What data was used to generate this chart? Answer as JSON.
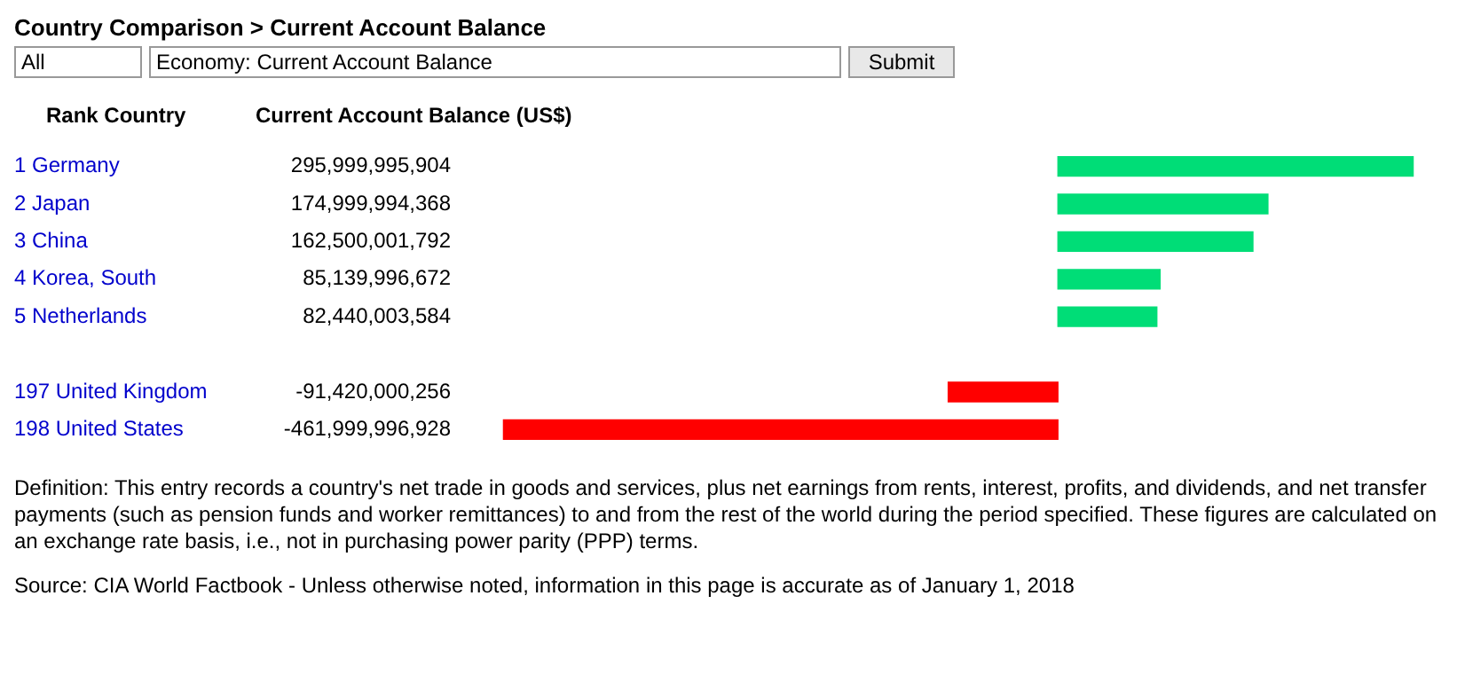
{
  "chart_data": {
    "type": "bar",
    "orientation": "horizontal",
    "title": "Country Comparison > Current Account Balance",
    "ylabel": "Rank Country",
    "xlabel": "Current Account Balance (US$)",
    "categories": [
      "1 Germany",
      "2 Japan",
      "3 China",
      "4 Korea, South",
      "5 Netherlands",
      null,
      "197 United Kingdom",
      "198 United States"
    ],
    "values": [
      295999995904,
      174999994368,
      162500001792,
      85139996672,
      82440003584,
      null,
      -91420000256,
      -461999996928
    ],
    "value_labels": [
      "295,999,995,904",
      "174,999,994,368",
      "162,500,001,792",
      "85,139,996,672",
      "82,440,003,584",
      null,
      "-91,420,000,256",
      "-461,999,996,928"
    ],
    "colors": [
      "#00dd77",
      "#00dd77",
      "#00dd77",
      "#00dd77",
      "#00dd77",
      null,
      "#ff0000",
      "#ff0000"
    ],
    "tick_labels": "y",
    "grid": false,
    "legend": false,
    "annotations": [
      "All",
      "Economy: Current Account Balance",
      "Submit",
      "Definition: This entry records a country's net trade in goods and services, plus net earnings from rents, interest, profits, and dividends, and net transfer payments (such as pension funds and worker remittances) to and from the rest of the world during the period specified. These figures are calculated on an exchange rate basis, i.e., not in purchasing power parity (PPP) terms.",
      "Source: CIA World Factbook - Unless otherwise noted, information in this page is accurate as of January 1, 2018"
    ]
  }
}
